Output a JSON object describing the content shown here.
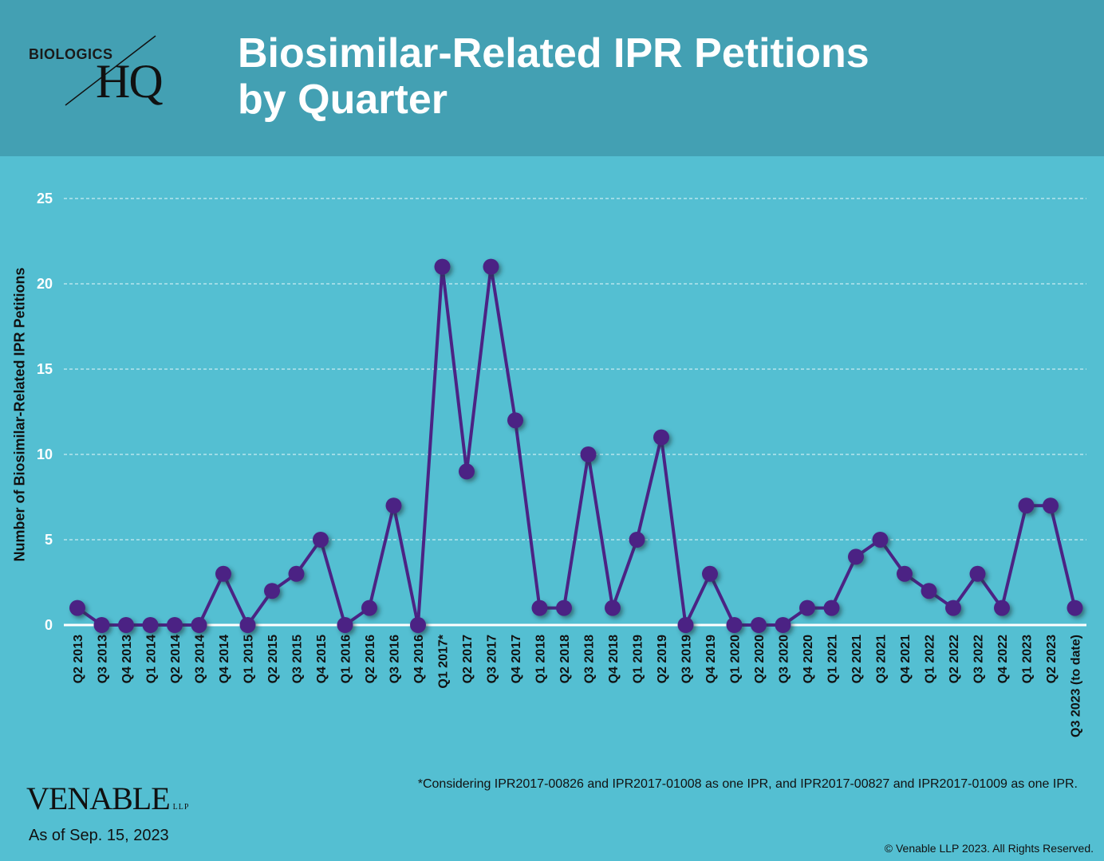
{
  "header": {
    "title_line1": "Biosimilar-Related IPR Petitions",
    "title_line2": "by Quarter",
    "logo_top": "BIOLOGICS",
    "logo_main": "HQ"
  },
  "chart_data": {
    "type": "line",
    "ylabel": "Number of Biosimilar-Related IPR Petitions",
    "ylim": [
      0,
      25
    ],
    "yticks": [
      0,
      5,
      10,
      15,
      20,
      25
    ],
    "grid": true,
    "categories": [
      "Q2 2013",
      "Q3 2013",
      "Q4 2013",
      "Q1 2014",
      "Q2 2014",
      "Q3 2014",
      "Q4 2014",
      "Q1 2015",
      "Q2 2015",
      "Q3 2015",
      "Q4 2015",
      "Q1 2016",
      "Q2 2016",
      "Q3 2016",
      "Q4 2016",
      "Q1 2017*",
      "Q2 2017",
      "Q3 2017",
      "Q4 2017",
      "Q1 2018",
      "Q2 2018",
      "Q3 2018",
      "Q4 2018",
      "Q1 2019",
      "Q2 2019",
      "Q3 2019",
      "Q4 2019",
      "Q1 2020",
      "Q2 2020",
      "Q3 2020",
      "Q4 2020",
      "Q1 2021",
      "Q2 2021",
      "Q3 2021",
      "Q4 2021",
      "Q1 2022",
      "Q2 2022",
      "Q3 2022",
      "Q4 2022",
      "Q1 2023",
      "Q2 2023",
      "Q3 2023 (to date)"
    ],
    "values": [
      1,
      0,
      0,
      0,
      0,
      0,
      3,
      0,
      2,
      3,
      5,
      0,
      1,
      7,
      0,
      21,
      9,
      21,
      12,
      1,
      1,
      10,
      1,
      5,
      11,
      0,
      3,
      0,
      0,
      0,
      1,
      1,
      4,
      5,
      3,
      2,
      1,
      3,
      1,
      7,
      7,
      1
    ],
    "line_color": "#4b2384",
    "marker_color": "#4b2384"
  },
  "footer": {
    "footnote": "*Considering IPR2017-00826 and IPR2017-01008 as one IPR, and IPR2017-00827 and IPR2017-01009 as one IPR.",
    "brand": "VENABLE",
    "brand_suffix": "LLP",
    "as_of": "As of Sep. 15, 2023",
    "copyright": "© Venable LLP 2023. All Rights Reserved."
  }
}
